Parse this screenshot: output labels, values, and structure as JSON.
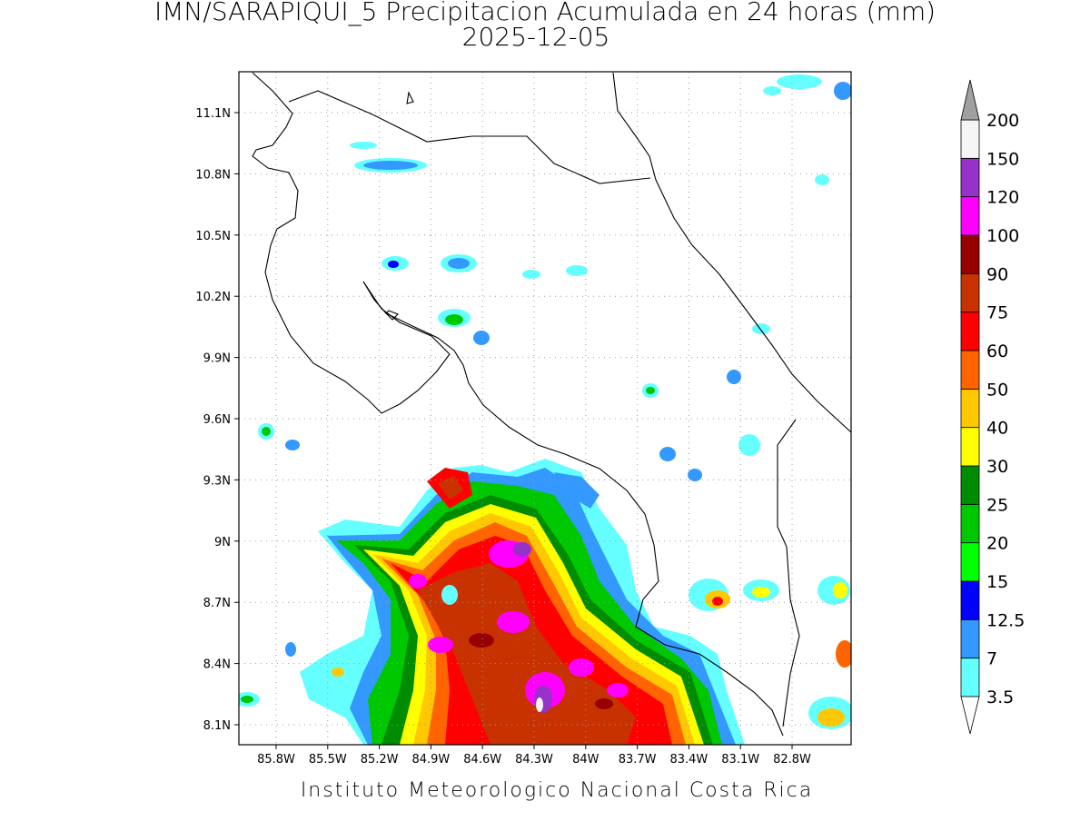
{
  "header": {
    "title": "IMN/SARAPIQUI_5 Precipitacion Acumulada en 24 horas (mm)",
    "date": "2025-12-05"
  },
  "map": {
    "lat_labels": [
      "11.1N",
      "10.8N",
      "10.5N",
      "10.2N",
      "9.9N",
      "9.6N",
      "9.3N",
      "9N",
      "8.7N",
      "8.4N",
      "8.1N"
    ],
    "lon_labels": [
      "85.8W",
      "85.5W",
      "85.2W",
      "84.9W",
      "84.6W",
      "84.3W",
      "84W",
      "83.7W",
      "83.4W",
      "83.1W",
      "82.8W"
    ]
  },
  "colorbar": {
    "levels": [
      "3.5",
      "7",
      "12.5",
      "15",
      "20",
      "25",
      "30",
      "40",
      "50",
      "60",
      "75",
      "90",
      "100",
      "120",
      "150",
      "200"
    ],
    "colors": [
      "#66ffff",
      "#3399ff",
      "#0000ff",
      "#00ff00",
      "#00c800",
      "#008c00",
      "#ffff00",
      "#ffc800",
      "#ff6400",
      "#ff0000",
      "#c83200",
      "#960000",
      "#ff00ff",
      "#9632c8",
      "#f5f5f5"
    ]
  },
  "footer": "Instituto Meteorologico Nacional Costa Rica"
}
